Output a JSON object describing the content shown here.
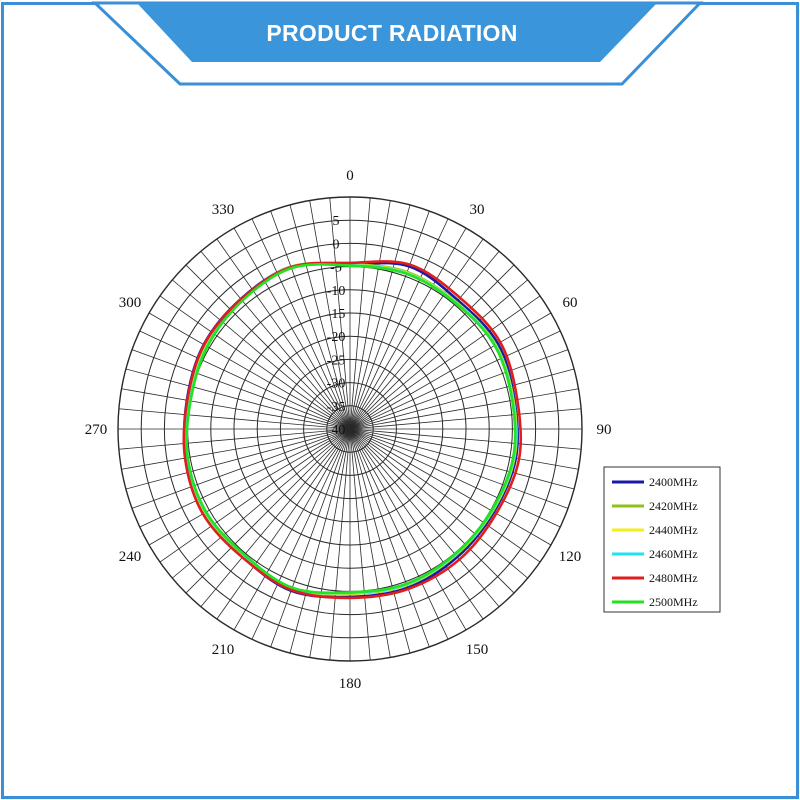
{
  "header": {
    "title": "PRODUCT RADIATION"
  },
  "colors": {
    "frame": "#3a8fd6",
    "banner": "#3a95da",
    "banner_border": "#1f77c4"
  },
  "chart_data": {
    "type": "polar-line",
    "title": "",
    "angle_ticks": [
      "0",
      "30",
      "60",
      "90",
      "120",
      "150",
      "180",
      "210",
      "240",
      "270",
      "300",
      "330"
    ],
    "angle_tick_values": [
      0,
      30,
      60,
      90,
      120,
      150,
      180,
      210,
      240,
      270,
      300,
      330
    ],
    "radial_ticks": [
      "5",
      "0",
      "-5",
      "-10",
      "-15",
      "-20",
      "-25",
      "-30",
      "-35",
      "-40"
    ],
    "radial_tick_values": [
      5,
      0,
      -5,
      -10,
      -15,
      -20,
      -25,
      -30,
      -35,
      -40
    ],
    "r_range": [
      -40,
      5
    ],
    "r_outer_display": 10,
    "angle_step": 5,
    "grid": true,
    "legend_position": "right",
    "angle_deg": [
      0,
      20,
      40,
      60,
      80,
      100,
      120,
      140,
      160,
      180,
      200,
      220,
      240,
      260,
      280,
      300,
      320,
      340
    ],
    "series": [
      {
        "name": "2400MHz",
        "color": "#1a1aa8",
        "values": [
          -4.5,
          -2.7,
          -3.8,
          -3.2,
          -4.0,
          -3.7,
          -4.2,
          -4.0,
          -3.6,
          -3.8,
          -2.9,
          -4.0,
          -3.6,
          -4.1,
          -4.3,
          -3.6,
          -3.4,
          -2.8
        ]
      },
      {
        "name": "2420MHz",
        "color": "#8cc21a",
        "values": [
          -4.5,
          -4.0,
          -4.3,
          -3.7,
          -4.2,
          -4.0,
          -4.5,
          -4.5,
          -4.2,
          -4.5,
          -3.3,
          -4.3,
          -3.9,
          -4.2,
          -4.8,
          -4.2,
          -3.6,
          -2.8
        ]
      },
      {
        "name": "2440MHz",
        "color": "#f2ee1a",
        "values": [
          -4.6,
          -4.2,
          -4.4,
          -3.8,
          -4.3,
          -4.1,
          -4.6,
          -4.6,
          -4.3,
          -4.6,
          -3.4,
          -4.4,
          -4.0,
          -4.3,
          -4.9,
          -4.3,
          -3.7,
          -2.9
        ]
      },
      {
        "name": "2460MHz",
        "color": "#22e2ee",
        "values": [
          -4.7,
          -4.3,
          -4.5,
          -3.9,
          -4.4,
          -4.2,
          -4.7,
          -4.7,
          -4.4,
          -4.7,
          -3.5,
          -4.5,
          -4.1,
          -4.4,
          -5.0,
          -4.4,
          -3.8,
          -3.0
        ]
      },
      {
        "name": "2480MHz",
        "color": "#e01e1e",
        "values": [
          -4.2,
          -2.3,
          -3.1,
          -2.6,
          -3.4,
          -3.0,
          -3.6,
          -3.3,
          -3.3,
          -3.6,
          -3.1,
          -3.9,
          -3.4,
          -3.9,
          -4.4,
          -3.7,
          -3.5,
          -2.9
        ]
      },
      {
        "name": "2500MHz",
        "color": "#22e222",
        "values": [
          -4.8,
          -4.4,
          -4.6,
          -4.0,
          -4.5,
          -4.3,
          -4.8,
          -4.8,
          -4.5,
          -4.8,
          -3.6,
          -4.6,
          -4.2,
          -4.5,
          -5.1,
          -4.5,
          -3.9,
          -3.1
        ]
      }
    ]
  }
}
